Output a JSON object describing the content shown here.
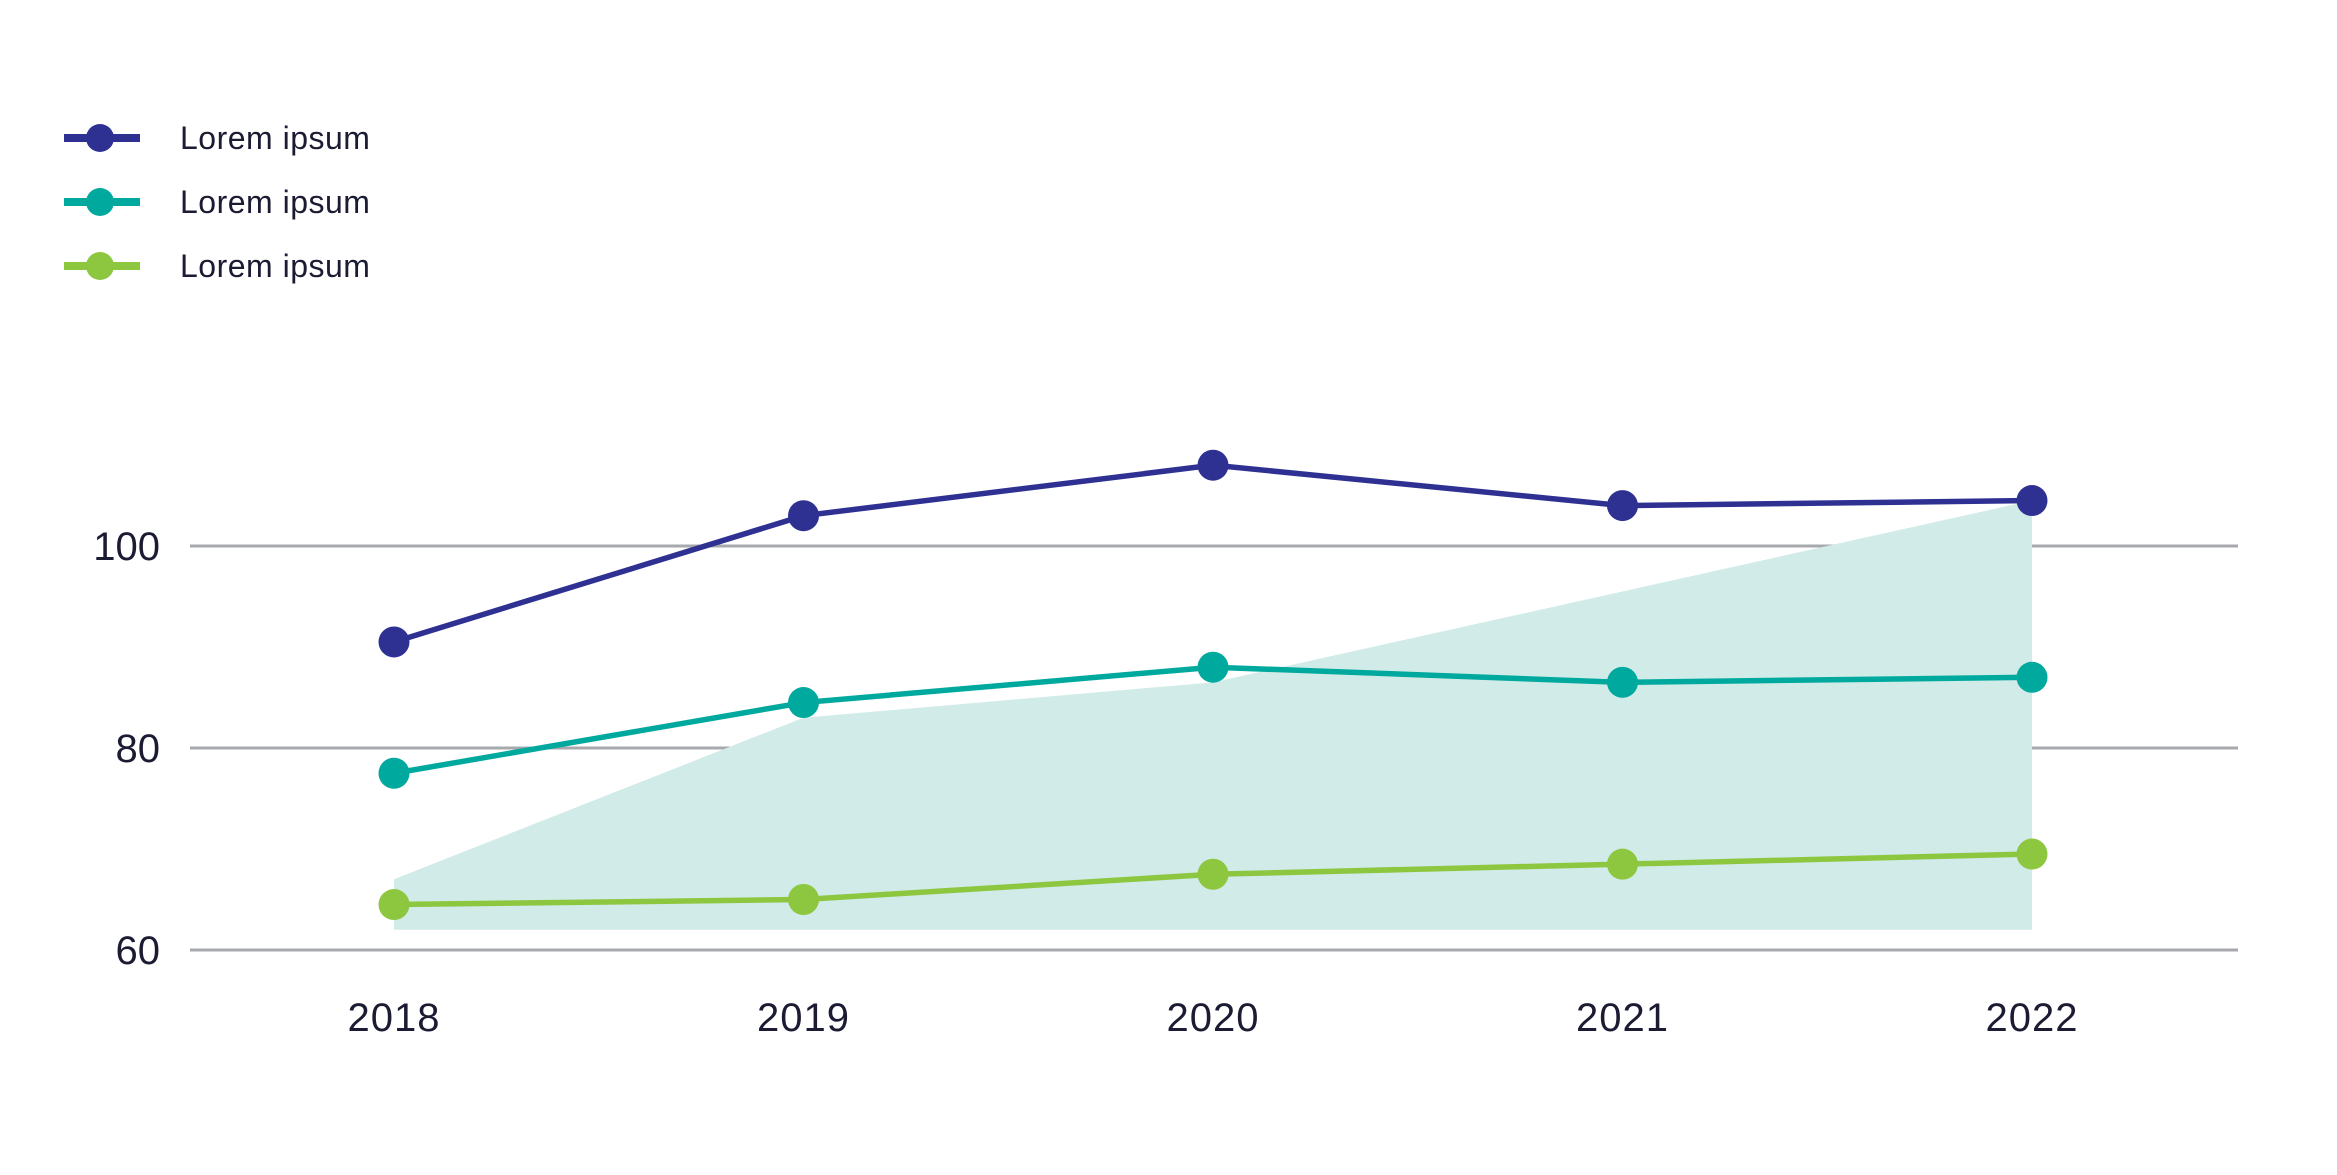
{
  "legend": {
    "items": [
      {
        "label": "Lorem ipsum",
        "color": "#2e3192"
      },
      {
        "label": "Lorem ipsum",
        "color": "#00a99d"
      },
      {
        "label": "Lorem ipsum",
        "color": "#8dc63f"
      }
    ]
  },
  "chart_data": {
    "type": "line",
    "title": "",
    "xlabel": "",
    "ylabel": "",
    "categories": [
      "2018",
      "2019",
      "2020",
      "2021",
      "2022"
    ],
    "series": [
      {
        "name": "Lorem ipsum",
        "color": "#2e3192",
        "values": [
          90.5,
          103,
          108,
          104,
          104.5
        ]
      },
      {
        "name": "Lorem ipsum",
        "color": "#00a99d",
        "values": [
          77.5,
          84.5,
          88,
          86.5,
          87
        ]
      },
      {
        "name": "Lorem ipsum",
        "color": "#8dc63f",
        "values": [
          64.5,
          65,
          67.5,
          68.5,
          69.5
        ]
      }
    ],
    "background_band": {
      "color": "#d0ebe8",
      "top_values": [
        67,
        83,
        86.5,
        95.5,
        104.5
      ],
      "bottom_value": 62
    },
    "y_ticks": [
      100,
      80,
      60
    ],
    "ylim": [
      56,
      112
    ],
    "grid": true,
    "grid_color": "#a7a9ac",
    "text_color": "#1b1b33",
    "legend_position": "top-left",
    "marker": "circle"
  }
}
